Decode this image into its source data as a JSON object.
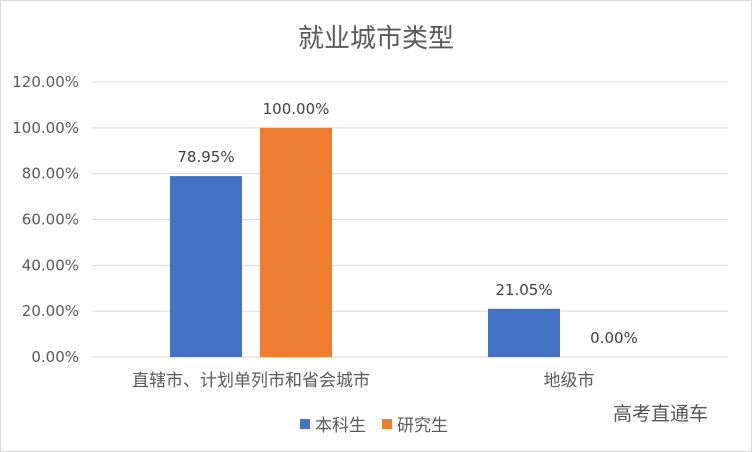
{
  "chart_data": {
    "type": "bar",
    "title": "就业城市类型",
    "categories": [
      "直辖市、计划单列市和省会城市",
      "地级市"
    ],
    "series": [
      {
        "name": "本科生",
        "color": "#4472c4",
        "values": [
          78.95,
          21.05
        ]
      },
      {
        "name": "研究生",
        "color": "#ed7d31",
        "values": [
          100.0,
          0.0
        ]
      }
    ],
    "ylim": [
      0,
      120
    ],
    "yticks": [
      {
        "value": 0,
        "label": "0.00%"
      },
      {
        "value": 20,
        "label": "20.00%"
      },
      {
        "value": 40,
        "label": "40.00%"
      },
      {
        "value": 60,
        "label": "60.00%"
      },
      {
        "value": 80,
        "label": "80.00%"
      },
      {
        "value": 100,
        "label": "100.00%"
      },
      {
        "value": 120,
        "label": "120.00%"
      }
    ],
    "data_labels": [
      [
        "78.95%",
        "21.05%"
      ],
      [
        "100.00%",
        "0.00%"
      ]
    ],
    "grid": true,
    "legend_position": "bottom"
  },
  "watermark": "高考直通车"
}
